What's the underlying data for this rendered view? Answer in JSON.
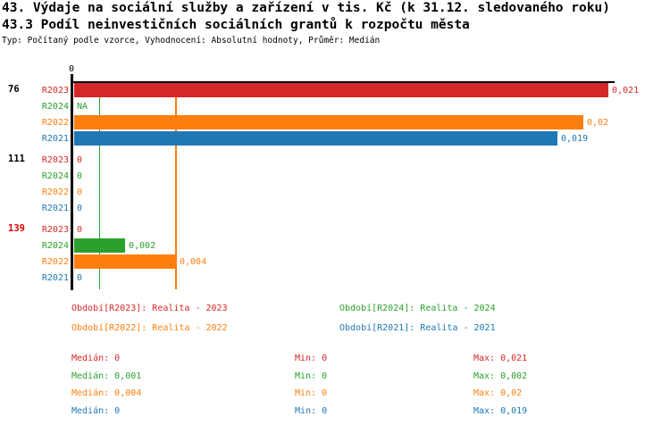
{
  "chart_data": {
    "type": "bar",
    "orientation": "horizontal",
    "title": "43. Výdaje na sociální služby a zařízení v tis. Kč (k 31.12. sledovaného roku)",
    "subtitle": "43.3 Podíl neinvestičních sociálních grantů k rozpočtu města",
    "meta": "Typ: Počítaný podle vzorce, Vyhodnocení: Absolutní hodnoty, Průměr: Medián",
    "x_axis": {
      "zero_label": "0",
      "min": 0,
      "max": 0.021,
      "grid": false
    },
    "series_order": [
      "R2023",
      "R2024",
      "R2022",
      "R2021"
    ],
    "series_colors": {
      "R2023": "#d62728",
      "R2024": "#2ca02c",
      "R2022": "#ff7f0e",
      "R2021": "#1f77b4"
    },
    "groups": [
      {
        "label": "76",
        "label_color": "#000000",
        "bars": [
          {
            "series": "R2023",
            "value": 0.021,
            "display": "0,021"
          },
          {
            "series": "R2024",
            "value": null,
            "display": "NA"
          },
          {
            "series": "R2022",
            "value": 0.02,
            "display": "0,02"
          },
          {
            "series": "R2021",
            "value": 0.019,
            "display": "0,019"
          }
        ]
      },
      {
        "label": "111",
        "label_color": "#000000",
        "bars": [
          {
            "series": "R2023",
            "value": 0,
            "display": "0"
          },
          {
            "series": "R2024",
            "value": 0,
            "display": "0"
          },
          {
            "series": "R2022",
            "value": 0,
            "display": "0"
          },
          {
            "series": "R2021",
            "value": 0,
            "display": "0"
          }
        ]
      },
      {
        "label": "139",
        "label_color": "#dd0000",
        "bars": [
          {
            "series": "R2023",
            "value": 0,
            "display": "0"
          },
          {
            "series": "R2024",
            "value": 0.002,
            "display": "0,002"
          },
          {
            "series": "R2022",
            "value": 0.004,
            "display": "0,004"
          },
          {
            "series": "R2021",
            "value": 0,
            "display": "0"
          }
        ]
      }
    ],
    "median_lines": [
      {
        "series": "R2024",
        "value": 0.001
      },
      {
        "series": "R2022",
        "value": 0.004
      }
    ],
    "legend": [
      {
        "series": "R2023",
        "label": "Období[R2023]: Realita - 2023"
      },
      {
        "series": "R2024",
        "label": "Období[R2024]: Realita - 2024"
      },
      {
        "series": "R2022",
        "label": "Období[R2022]: Realita - 2022"
      },
      {
        "series": "R2021",
        "label": "Období[R2021]: Realita - 2021"
      }
    ],
    "stats": [
      {
        "series": "R2023",
        "median": "Medián: 0",
        "min": "Min: 0",
        "max": "Max: 0,021"
      },
      {
        "series": "R2024",
        "median": "Medián: 0,001",
        "min": "Min: 0",
        "max": "Max: 0,002"
      },
      {
        "series": "R2022",
        "median": "Medián: 0,004",
        "min": "Min: 0",
        "max": "Max: 0,02"
      },
      {
        "series": "R2021",
        "median": "Medián: 0",
        "min": "Min: 0",
        "max": "Max: 0,019"
      }
    ]
  }
}
